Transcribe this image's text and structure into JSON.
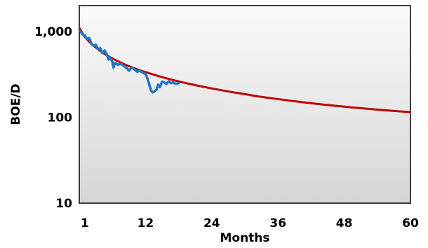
{
  "chart_data": {
    "type": "line",
    "title": "",
    "xlabel": "Months",
    "ylabel": "BOE/D",
    "x_scale": "linear",
    "y_scale": "log",
    "xlim": [
      0,
      60
    ],
    "ylim": [
      10,
      2000
    ],
    "x_ticks": [
      {
        "value": 1,
        "label": "1"
      },
      {
        "value": 12,
        "label": "12"
      },
      {
        "value": 24,
        "label": "24"
      },
      {
        "value": 36,
        "label": "36"
      },
      {
        "value": 48,
        "label": "48"
      },
      {
        "value": 60,
        "label": "60"
      }
    ],
    "y_ticks": [
      {
        "value": 10,
        "label": "10"
      },
      {
        "value": 100,
        "label": "100"
      },
      {
        "value": 1000,
        "label": "1,000"
      }
    ],
    "grid": false,
    "legend": "none",
    "series": [
      {
        "color": "#c00000",
        "style": "smooth",
        "x": [
          0,
          1,
          2,
          3,
          4,
          5,
          6,
          8,
          10,
          12,
          15,
          18,
          21,
          24,
          27,
          30,
          33,
          36,
          40,
          44,
          48,
          52,
          56,
          60
        ],
        "y": [
          1100,
          870,
          740,
          650,
          580,
          527,
          485,
          420,
          372,
          336,
          294,
          262,
          237,
          217,
          200,
          186,
          173,
          163,
          151,
          141,
          133,
          126,
          120,
          115
        ]
      },
      {
        "color": "#1f77c8",
        "style": "noisy",
        "x": [
          0.2,
          0.6,
          1,
          1.4,
          1.8,
          2.2,
          2.6,
          3,
          3.4,
          3.8,
          4.2,
          4.6,
          5,
          5.3,
          5.6,
          6,
          6.2,
          6.5,
          7,
          7.5,
          8,
          8.5,
          9,
          9.5,
          10,
          10.5,
          11,
          11.5,
          12,
          12.3,
          12.6,
          13,
          13.3,
          13.6,
          14,
          14.3,
          14.6,
          15,
          15.4,
          15.8,
          16.2,
          16.6,
          17,
          17.5,
          18
        ],
        "y": [
          1000,
          920,
          900,
          820,
          840,
          720,
          680,
          700,
          620,
          640,
          560,
          600,
          540,
          470,
          500,
          440,
          380,
          430,
          410,
          420,
          400,
          380,
          350,
          380,
          360,
          340,
          350,
          330,
          320,
          290,
          250,
          205,
          195,
          200,
          210,
          240,
          225,
          260,
          255,
          245,
          262,
          250,
          255,
          245,
          250
        ]
      }
    ]
  }
}
